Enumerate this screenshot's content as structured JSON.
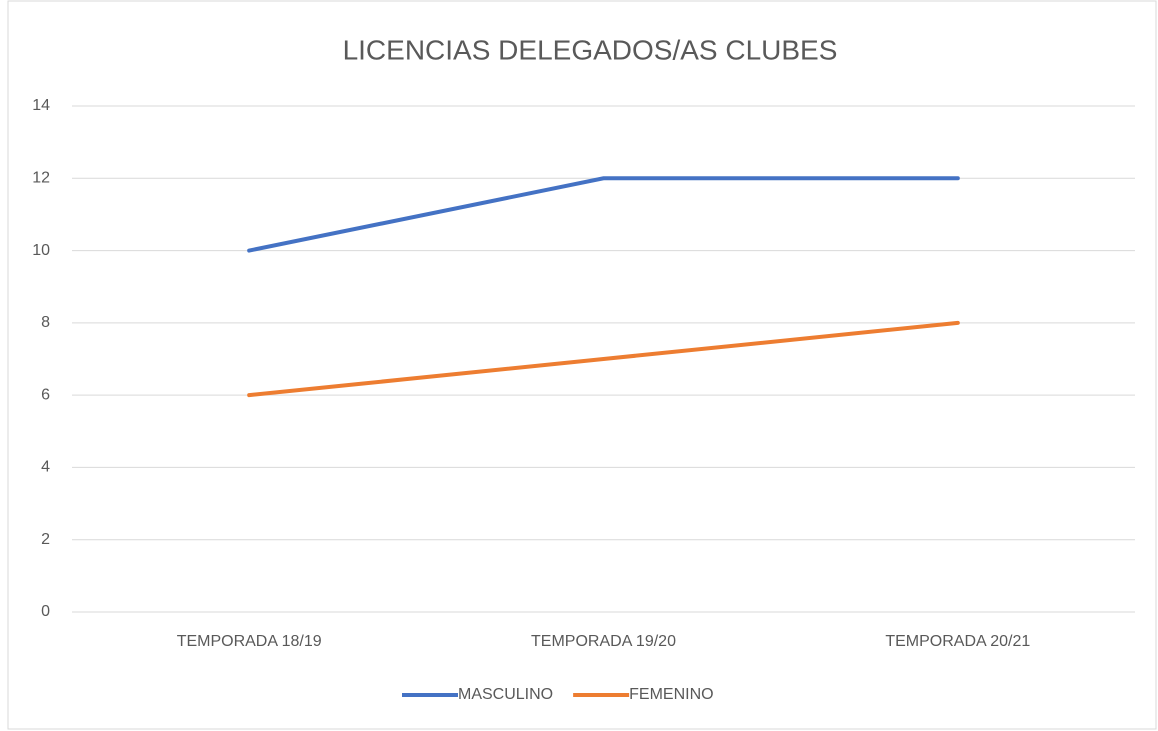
{
  "chart_data": {
    "type": "line",
    "title": "LICENCIAS DELEGADOS/AS CLUBES",
    "categories": [
      "TEMPORADA 18/19",
      "TEMPORADA 19/20",
      "TEMPORADA 20/21"
    ],
    "series": [
      {
        "name": "MASCULINO",
        "color": "#4472c4",
        "values": [
          10,
          12,
          12
        ]
      },
      {
        "name": "FEMENINO",
        "color": "#ed7d31",
        "values": [
          6,
          7,
          8
        ]
      }
    ],
    "ylim": [
      0,
      14
    ],
    "yticks": [
      0,
      2,
      4,
      6,
      8,
      10,
      12,
      14
    ],
    "grid": true,
    "legend": "bottom"
  }
}
